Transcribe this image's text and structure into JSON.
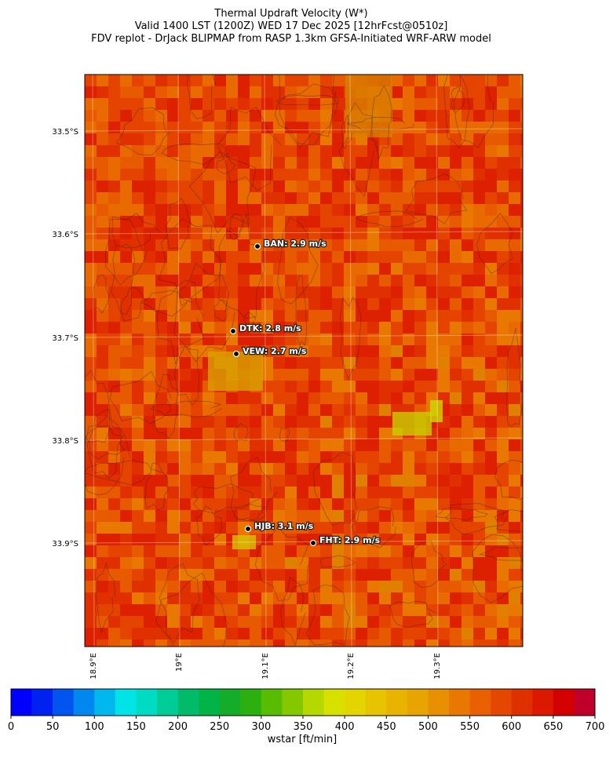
{
  "header": {
    "title_lines": [
      "Thermal Updraft Velocity (W*)",
      "Valid 1400 LST (1200Z) WED 17 Dec 2025 [12hrFcst@0510z]",
      "FDV replot - DrJack BLIPMAP from RASP 1.3km GFSA-Initiated WRF-ARW model"
    ]
  },
  "map": {
    "lat_labels": [
      "33.5°S",
      "33.6°S",
      "33.7°S",
      "33.8°S",
      "33.9°S"
    ],
    "lon_labels": [
      "18.9°E",
      "19°E",
      "19.1°E",
      "19.2°E",
      "19.3°E"
    ],
    "stations": [
      {
        "label": "BAN: 2.9 m/s"
      },
      {
        "label": "DTK: 2.8 m/s"
      },
      {
        "label": "VEW: 2.7 m/s"
      },
      {
        "label": "HJB: 3.1 m/s"
      },
      {
        "label": "FHT: 2.9 m/s"
      }
    ]
  },
  "colorbar": {
    "label": "wstar [ft/min]",
    "lim": [
      0,
      700
    ],
    "ticks": [
      0,
      50,
      100,
      150,
      200,
      250,
      300,
      350,
      400,
      450,
      500,
      550,
      600,
      650,
      700
    ],
    "colors": [
      "#0000ff",
      "#0022f0",
      "#0055ee",
      "#0088ee",
      "#00b8ee",
      "#00e4e8",
      "#00dcc4",
      "#00cc98",
      "#00bc68",
      "#00b448",
      "#14ac28",
      "#2cb010",
      "#58bc00",
      "#84c800",
      "#b4d800",
      "#d8e000",
      "#e4d400",
      "#e8c400",
      "#e8b400",
      "#e8a400",
      "#e89000",
      "#e87800",
      "#e86000",
      "#e44800",
      "#e03000",
      "#dc1800",
      "#d40000",
      "#c00028"
    ]
  }
}
